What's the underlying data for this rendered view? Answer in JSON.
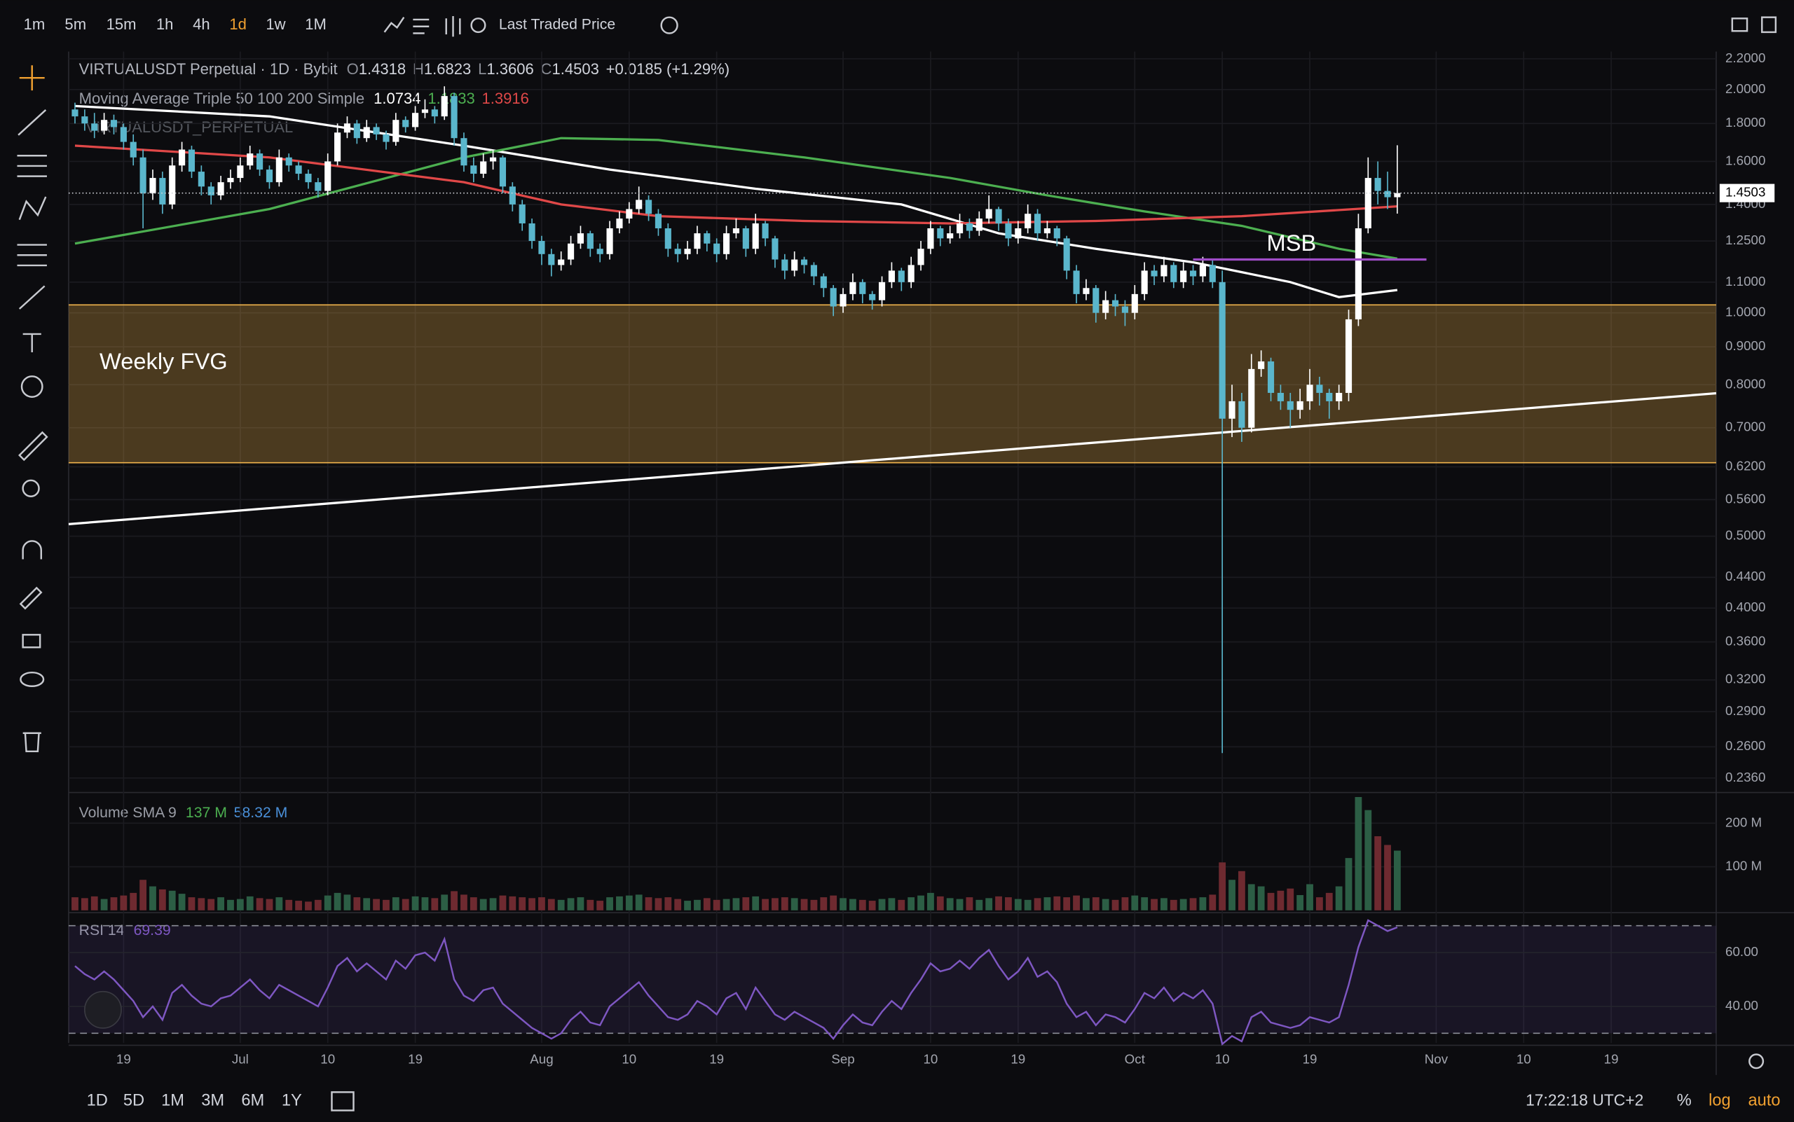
{
  "toolbar": {
    "intervals": [
      "1m",
      "5m",
      "15m",
      "1h",
      "4h",
      "1d",
      "1w",
      "1M"
    ],
    "active_interval": "1d",
    "price_source": "Last Traded Price"
  },
  "footer": {
    "ranges": [
      "1D",
      "5D",
      "1M",
      "3M",
      "6M",
      "1Y"
    ],
    "clock": "17:22:18 UTC+2",
    "options": [
      "%",
      "log",
      "auto"
    ]
  },
  "chart_data": {
    "type": "candlestick",
    "title": "VIRTUALUSDT Perpetual · 1D · Bybit",
    "ohlc_labels": [
      "O",
      "H",
      "L",
      "C"
    ],
    "change": "+0.0185 (+1.29%)",
    "watermark": "VIRTUALUSDT_PERPETUAL",
    "log_scale": true,
    "grid": true,
    "up_color": "#ffffff",
    "down_color": "#5ab6cc",
    "xlim": [
      -0.65,
      168.8
    ],
    "xticks": [
      {
        "value": 5,
        "label": "19"
      },
      {
        "value": 17,
        "label": "Jul"
      },
      {
        "value": 26,
        "label": "10"
      },
      {
        "value": 35,
        "label": "19"
      },
      {
        "value": 48,
        "label": "Aug"
      },
      {
        "value": 57,
        "label": "10"
      },
      {
        "value": 66,
        "label": "19"
      },
      {
        "value": 79,
        "label": "Sep"
      },
      {
        "value": 88,
        "label": "10"
      },
      {
        "value": 97,
        "label": "19"
      },
      {
        "value": 109,
        "label": "Oct"
      },
      {
        "value": 118,
        "label": "10"
      },
      {
        "value": 127,
        "label": "19"
      },
      {
        "value": 140,
        "label": "Nov"
      },
      {
        "value": 149,
        "label": "10"
      },
      {
        "value": 158,
        "label": "19"
      }
    ],
    "ylim": [
      0.228,
      2.25
    ],
    "yticks": [
      {
        "value": 2.2,
        "label": "2.2000"
      },
      {
        "value": 2.0,
        "label": "2.0000"
      },
      {
        "value": 1.8,
        "label": "1.8000"
      },
      {
        "value": 1.6,
        "label": "1.6000"
      },
      {
        "value": 1.4,
        "label": "1.4000"
      },
      {
        "value": 1.25,
        "label": "1.2500"
      },
      {
        "value": 1.1,
        "label": "1.1000"
      },
      {
        "value": 1.0,
        "label": "1.0000"
      },
      {
        "value": 0.9,
        "label": "0.9000"
      },
      {
        "value": 0.8,
        "label": "0.8000"
      },
      {
        "value": 0.7,
        "label": "0.7000"
      },
      {
        "value": 0.62,
        "label": "0.6200"
      },
      {
        "value": 0.56,
        "label": "0.5600"
      },
      {
        "value": 0.5,
        "label": "0.5000"
      },
      {
        "value": 0.44,
        "label": "0.4400"
      },
      {
        "value": 0.4,
        "label": "0.4000"
      },
      {
        "value": 0.36,
        "label": "0.3600"
      },
      {
        "value": 0.32,
        "label": "0.3200"
      },
      {
        "value": 0.29,
        "label": "0.2900"
      },
      {
        "value": 0.26,
        "label": "0.2600"
      },
      {
        "value": 0.236,
        "label": "0.2360"
      }
    ],
    "candles": [
      [
        1.88,
        1.92,
        1.8,
        1.84
      ],
      [
        1.84,
        1.88,
        1.76,
        1.8
      ],
      [
        1.8,
        1.86,
        1.72,
        1.76
      ],
      [
        1.76,
        1.86,
        1.74,
        1.82
      ],
      [
        1.82,
        1.85,
        1.74,
        1.78
      ],
      [
        1.78,
        1.8,
        1.66,
        1.7
      ],
      [
        1.7,
        1.74,
        1.58,
        1.62
      ],
      [
        1.62,
        1.66,
        1.3,
        1.45
      ],
      [
        1.45,
        1.56,
        1.42,
        1.52
      ],
      [
        1.52,
        1.55,
        1.36,
        1.4
      ],
      [
        1.4,
        1.62,
        1.38,
        1.58
      ],
      [
        1.58,
        1.7,
        1.55,
        1.66
      ],
      [
        1.66,
        1.68,
        1.52,
        1.55
      ],
      [
        1.55,
        1.58,
        1.44,
        1.48
      ],
      [
        1.48,
        1.5,
        1.4,
        1.44
      ],
      [
        1.44,
        1.53,
        1.42,
        1.5
      ],
      [
        1.5,
        1.56,
        1.47,
        1.52
      ],
      [
        1.52,
        1.62,
        1.5,
        1.58
      ],
      [
        1.58,
        1.68,
        1.56,
        1.64
      ],
      [
        1.64,
        1.66,
        1.53,
        1.56
      ],
      [
        1.56,
        1.58,
        1.47,
        1.5
      ],
      [
        1.5,
        1.66,
        1.48,
        1.62
      ],
      [
        1.62,
        1.64,
        1.55,
        1.58
      ],
      [
        1.58,
        1.6,
        1.51,
        1.54
      ],
      [
        1.54,
        1.56,
        1.47,
        1.5
      ],
      [
        1.5,
        1.52,
        1.43,
        1.46
      ],
      [
        1.46,
        1.64,
        1.44,
        1.6
      ],
      [
        1.6,
        1.8,
        1.58,
        1.75
      ],
      [
        1.75,
        1.84,
        1.72,
        1.8
      ],
      [
        1.8,
        1.82,
        1.69,
        1.72
      ],
      [
        1.72,
        1.82,
        1.7,
        1.78
      ],
      [
        1.78,
        1.8,
        1.71,
        1.74
      ],
      [
        1.74,
        1.76,
        1.66,
        1.7
      ],
      [
        1.7,
        1.86,
        1.68,
        1.82
      ],
      [
        1.82,
        1.84,
        1.75,
        1.78
      ],
      [
        1.78,
        1.9,
        1.76,
        1.86
      ],
      [
        1.86,
        1.94,
        1.83,
        1.88
      ],
      [
        1.88,
        1.9,
        1.8,
        1.84
      ],
      [
        1.84,
        2.02,
        1.82,
        1.96
      ],
      [
        1.96,
        1.98,
        1.68,
        1.72
      ],
      [
        1.72,
        1.75,
        1.55,
        1.58
      ],
      [
        1.58,
        1.62,
        1.5,
        1.54
      ],
      [
        1.54,
        1.64,
        1.52,
        1.6
      ],
      [
        1.6,
        1.66,
        1.56,
        1.62
      ],
      [
        1.62,
        1.63,
        1.45,
        1.48
      ],
      [
        1.48,
        1.5,
        1.37,
        1.4
      ],
      [
        1.4,
        1.42,
        1.29,
        1.32
      ],
      [
        1.32,
        1.34,
        1.22,
        1.25
      ],
      [
        1.25,
        1.27,
        1.16,
        1.2
      ],
      [
        1.2,
        1.22,
        1.12,
        1.16
      ],
      [
        1.16,
        1.21,
        1.14,
        1.18
      ],
      [
        1.18,
        1.27,
        1.16,
        1.24
      ],
      [
        1.24,
        1.31,
        1.22,
        1.28
      ],
      [
        1.28,
        1.29,
        1.19,
        1.22
      ],
      [
        1.22,
        1.24,
        1.17,
        1.2
      ],
      [
        1.2,
        1.33,
        1.18,
        1.3
      ],
      [
        1.3,
        1.37,
        1.28,
        1.34
      ],
      [
        1.34,
        1.41,
        1.32,
        1.38
      ],
      [
        1.38,
        1.48,
        1.36,
        1.42
      ],
      [
        1.42,
        1.44,
        1.33,
        1.36
      ],
      [
        1.36,
        1.38,
        1.27,
        1.3
      ],
      [
        1.3,
        1.32,
        1.19,
        1.22
      ],
      [
        1.22,
        1.24,
        1.17,
        1.2
      ],
      [
        1.2,
        1.25,
        1.18,
        1.22
      ],
      [
        1.22,
        1.31,
        1.2,
        1.28
      ],
      [
        1.28,
        1.29,
        1.21,
        1.24
      ],
      [
        1.24,
        1.26,
        1.17,
        1.2
      ],
      [
        1.2,
        1.31,
        1.18,
        1.28
      ],
      [
        1.28,
        1.34,
        1.26,
        1.3
      ],
      [
        1.3,
        1.31,
        1.19,
        1.22
      ],
      [
        1.22,
        1.36,
        1.2,
        1.32
      ],
      [
        1.32,
        1.33,
        1.23,
        1.26
      ],
      [
        1.26,
        1.27,
        1.15,
        1.18
      ],
      [
        1.18,
        1.2,
        1.11,
        1.14
      ],
      [
        1.14,
        1.21,
        1.12,
        1.18
      ],
      [
        1.18,
        1.19,
        1.13,
        1.16
      ],
      [
        1.16,
        1.17,
        1.09,
        1.12
      ],
      [
        1.12,
        1.13,
        1.05,
        1.08
      ],
      [
        1.08,
        1.09,
        0.99,
        1.02
      ],
      [
        1.02,
        1.08,
        1.0,
        1.06
      ],
      [
        1.06,
        1.13,
        1.04,
        1.1
      ],
      [
        1.1,
        1.11,
        1.03,
        1.06
      ],
      [
        1.06,
        1.07,
        1.01,
        1.04
      ],
      [
        1.04,
        1.12,
        1.02,
        1.1
      ],
      [
        1.1,
        1.17,
        1.08,
        1.14
      ],
      [
        1.14,
        1.15,
        1.07,
        1.1
      ],
      [
        1.1,
        1.19,
        1.08,
        1.16
      ],
      [
        1.16,
        1.25,
        1.14,
        1.22
      ],
      [
        1.22,
        1.33,
        1.2,
        1.3
      ],
      [
        1.3,
        1.31,
        1.23,
        1.26
      ],
      [
        1.26,
        1.31,
        1.24,
        1.28
      ],
      [
        1.28,
        1.36,
        1.26,
        1.32
      ],
      [
        1.32,
        1.34,
        1.26,
        1.29
      ],
      [
        1.29,
        1.37,
        1.27,
        1.34
      ],
      [
        1.34,
        1.44,
        1.32,
        1.38
      ],
      [
        1.38,
        1.39,
        1.29,
        1.32
      ],
      [
        1.32,
        1.34,
        1.23,
        1.26
      ],
      [
        1.26,
        1.33,
        1.24,
        1.3
      ],
      [
        1.3,
        1.4,
        1.28,
        1.36
      ],
      [
        1.36,
        1.38,
        1.25,
        1.28
      ],
      [
        1.28,
        1.33,
        1.26,
        1.3
      ],
      [
        1.3,
        1.31,
        1.23,
        1.26
      ],
      [
        1.26,
        1.27,
        1.11,
        1.14
      ],
      [
        1.14,
        1.16,
        1.03,
        1.06
      ],
      [
        1.06,
        1.11,
        1.04,
        1.08
      ],
      [
        1.08,
        1.09,
        0.97,
        1.0
      ],
      [
        1.0,
        1.07,
        0.98,
        1.04
      ],
      [
        1.04,
        1.06,
        0.99,
        1.02
      ],
      [
        1.02,
        1.04,
        0.96,
        1.0
      ],
      [
        1.0,
        1.09,
        0.98,
        1.06
      ],
      [
        1.06,
        1.17,
        1.04,
        1.14
      ],
      [
        1.14,
        1.16,
        1.09,
        1.12
      ],
      [
        1.12,
        1.19,
        1.1,
        1.16
      ],
      [
        1.16,
        1.17,
        1.08,
        1.1
      ],
      [
        1.1,
        1.17,
        1.08,
        1.14
      ],
      [
        1.14,
        1.16,
        1.09,
        1.12
      ],
      [
        1.12,
        1.19,
        1.1,
        1.16
      ],
      [
        1.16,
        1.18,
        1.08,
        1.1
      ],
      [
        1.1,
        1.14,
        0.255,
        0.72
      ],
      [
        0.72,
        0.8,
        0.68,
        0.76
      ],
      [
        0.76,
        0.78,
        0.67,
        0.7
      ],
      [
        0.7,
        0.88,
        0.69,
        0.84
      ],
      [
        0.84,
        0.89,
        0.82,
        0.86
      ],
      [
        0.86,
        0.87,
        0.76,
        0.78
      ],
      [
        0.78,
        0.8,
        0.74,
        0.76
      ],
      [
        0.76,
        0.78,
        0.7,
        0.74
      ],
      [
        0.74,
        0.79,
        0.72,
        0.76
      ],
      [
        0.76,
        0.84,
        0.74,
        0.8
      ],
      [
        0.8,
        0.82,
        0.75,
        0.78
      ],
      [
        0.78,
        0.79,
        0.72,
        0.76
      ],
      [
        0.76,
        0.8,
        0.74,
        0.78
      ],
      [
        0.78,
        1.01,
        0.76,
        0.98
      ],
      [
        0.98,
        1.36,
        0.96,
        1.3
      ],
      [
        1.3,
        1.62,
        1.28,
        1.52
      ],
      [
        1.52,
        1.6,
        1.4,
        1.46
      ],
      [
        1.46,
        1.55,
        1.38,
        1.4318
      ],
      [
        1.4318,
        1.6823,
        1.3606,
        1.4503
      ]
    ],
    "ma_title": "Moving Average Triple 50 100 200 Simple",
    "series": [
      {
        "name": "MA 50",
        "color": "#ffffff",
        "x": [
          0,
          20,
          40,
          55,
          70,
          85,
          95,
          105,
          115,
          125,
          130,
          136
        ],
        "values": [
          1.9,
          1.84,
          1.68,
          1.56,
          1.47,
          1.4,
          1.28,
          1.22,
          1.17,
          1.1,
          1.05,
          1.0734
        ]
      },
      {
        "name": "MA 100",
        "color": "#4caf50",
        "x": [
          0,
          20,
          40,
          50,
          60,
          75,
          90,
          100,
          110,
          120,
          130,
          136
        ],
        "values": [
          1.24,
          1.38,
          1.62,
          1.72,
          1.71,
          1.62,
          1.52,
          1.44,
          1.37,
          1.31,
          1.22,
          1.1833
        ]
      },
      {
        "name": "MA 200",
        "color": "#e04848",
        "x": [
          0,
          20,
          40,
          50,
          60,
          75,
          90,
          105,
          120,
          136
        ],
        "values": [
          1.68,
          1.62,
          1.5,
          1.4,
          1.35,
          1.33,
          1.32,
          1.33,
          1.35,
          1.3916
        ]
      }
    ],
    "annotations": {
      "fvg": {
        "label": "Weekly FVG",
        "top": 1.025,
        "bottom": 0.628,
        "color": "#f0b44c"
      },
      "msb": {
        "label": "MSB",
        "value": 1.18,
        "x": [
          115,
          139
        ],
        "color": "#a04cc8"
      },
      "trendline": {
        "x": [
          -0.65,
          168.8
        ],
        "values": [
          0.519,
          0.779
        ]
      }
    },
    "volume": {
      "title": "Volume SMA 9",
      "last_label": "137 M",
      "sma_label": "58.32 M",
      "up_color": "#2c5e45",
      "down_color": "#6e2a30",
      "ylim": [
        0,
        265
      ],
      "yticks": [
        {
          "value": 200,
          "label": "200 M"
        },
        {
          "value": 100,
          "label": "100 M"
        }
      ],
      "values": [
        30,
        28,
        32,
        26,
        30,
        34,
        40,
        70,
        55,
        48,
        45,
        38,
        30,
        28,
        26,
        30,
        24,
        26,
        32,
        28,
        26,
        30,
        24,
        22,
        20,
        24,
        34,
        40,
        36,
        30,
        28,
        26,
        24,
        30,
        26,
        32,
        30,
        28,
        36,
        44,
        36,
        30,
        26,
        28,
        34,
        32,
        30,
        28,
        30,
        26,
        24,
        28,
        30,
        24,
        22,
        30,
        32,
        34,
        36,
        30,
        28,
        30,
        26,
        22,
        24,
        28,
        24,
        26,
        28,
        30,
        32,
        26,
        28,
        30,
        28,
        26,
        24,
        30,
        34,
        28,
        26,
        24,
        22,
        26,
        28,
        24,
        30,
        34,
        40,
        32,
        28,
        26,
        30,
        24,
        28,
        32,
        30,
        26,
        24,
        28,
        30,
        32,
        30,
        34,
        28,
        30,
        26,
        24,
        30,
        34,
        30,
        26,
        28,
        24,
        26,
        28,
        30,
        36,
        110,
        70,
        90,
        60,
        55,
        40,
        45,
        50,
        35,
        60,
        30,
        40,
        55,
        120,
        260,
        230,
        170,
        150,
        137
      ]
    },
    "rsi": {
      "title": "RSI 14",
      "color": "#7e57c2",
      "ylim": [
        26.4,
        74
      ],
      "bands": [
        70,
        30
      ],
      "yticks": [
        {
          "value": 60,
          "label": "60.00"
        },
        {
          "value": 40,
          "label": "40.00"
        }
      ],
      "values": [
        55,
        52,
        50,
        53,
        50,
        46,
        42,
        36,
        40,
        35,
        45,
        48,
        44,
        41,
        40,
        43,
        44,
        47,
        50,
        46,
        43,
        48,
        46,
        44,
        42,
        40,
        47,
        55,
        58,
        53,
        56,
        53,
        50,
        57,
        54,
        59,
        60,
        57,
        65,
        50,
        44,
        42,
        46,
        47,
        41,
        38,
        35,
        32,
        30,
        28,
        30,
        35,
        38,
        34,
        33,
        40,
        43,
        46,
        49,
        44,
        40,
        36,
        35,
        37,
        42,
        40,
        37,
        43,
        45,
        39,
        47,
        42,
        37,
        35,
        38,
        36,
        34,
        32,
        28,
        33,
        37,
        34,
        33,
        38,
        42,
        39,
        45,
        50,
        56,
        53,
        54,
        57,
        54,
        58,
        61,
        55,
        50,
        53,
        58,
        51,
        53,
        49,
        41,
        36,
        38,
        33,
        37,
        36,
        34,
        39,
        45,
        43,
        47,
        42,
        45,
        43,
        46,
        41,
        26,
        29,
        27,
        36,
        38,
        34,
        33,
        32,
        33,
        36,
        35,
        34,
        36,
        48,
        62,
        72,
        70,
        68,
        69.39
      ]
    }
  }
}
